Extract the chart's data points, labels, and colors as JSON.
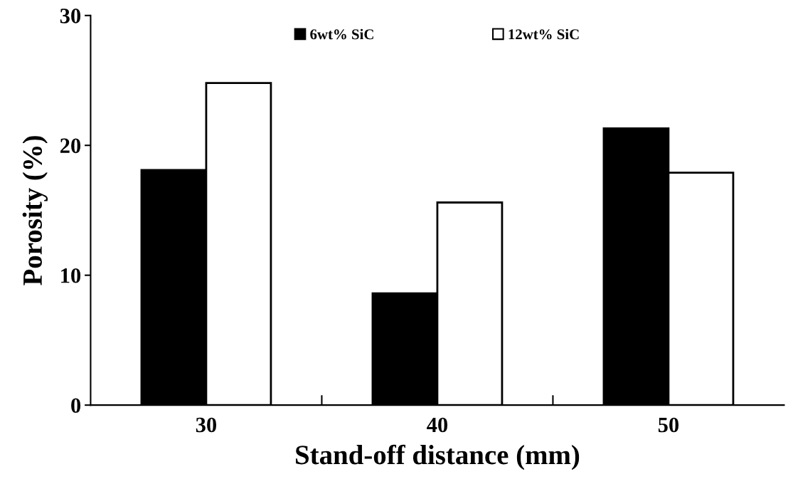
{
  "chart_data": {
    "type": "bar",
    "xlabel": "Stand-off distance (mm)",
    "ylabel": "Porosity (%)",
    "categories": [
      "30",
      "40",
      "50"
    ],
    "series": [
      {
        "name": "6wt% SiC",
        "color": "#000000",
        "values": [
          18.1,
          8.6,
          21.3
        ]
      },
      {
        "name": "12wt% SiC",
        "color": "#ffffff",
        "values": [
          24.8,
          15.6,
          17.9
        ]
      }
    ],
    "ylim": [
      0,
      30
    ],
    "yticks": [
      0,
      10,
      20,
      30
    ],
    "grid": false,
    "legend": "top"
  }
}
